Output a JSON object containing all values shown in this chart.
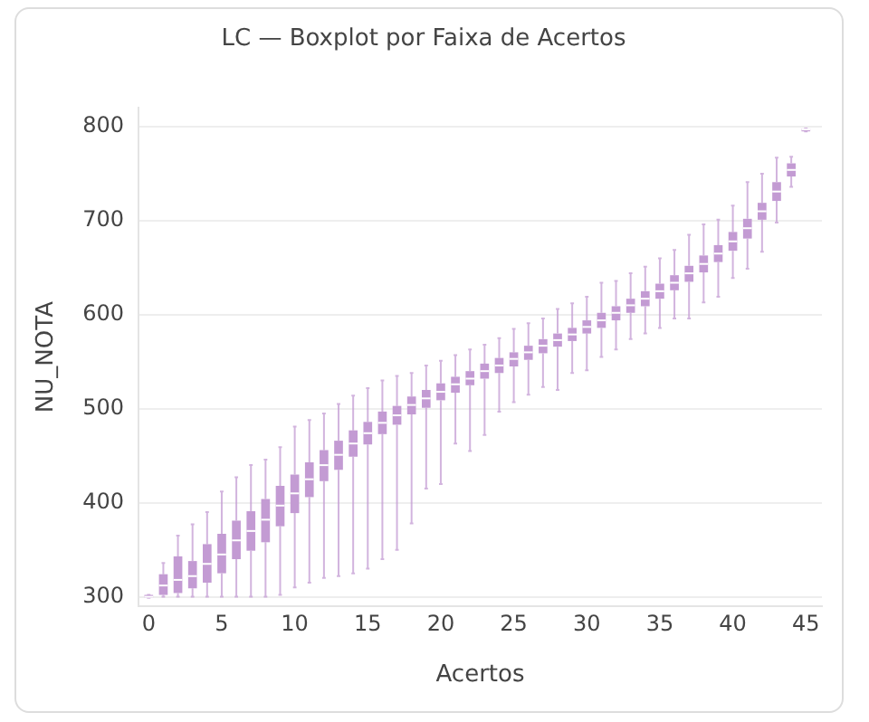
{
  "chart_data": {
    "type": "box",
    "title": "LC — Boxplot por Faixa de Acertos",
    "xlabel": "Acertos",
    "ylabel": "NU_NOTA",
    "color": "#c39bd3",
    "x": [
      0,
      1,
      2,
      3,
      4,
      5,
      6,
      7,
      8,
      9,
      10,
      11,
      12,
      13,
      14,
      15,
      16,
      17,
      18,
      19,
      20,
      21,
      22,
      23,
      24,
      25,
      26,
      27,
      28,
      29,
      30,
      31,
      32,
      33,
      34,
      35,
      36,
      37,
      38,
      39,
      40,
      41,
      42,
      43,
      44,
      45
    ],
    "xlim": [
      -0.7,
      46.1
    ],
    "xticks": [
      0,
      5,
      10,
      15,
      20,
      25,
      30,
      35,
      40,
      45
    ],
    "ylim": [
      290,
      820
    ],
    "yticks": [
      300,
      400,
      500,
      600,
      700,
      800
    ],
    "grid": "y",
    "legend": false,
    "boxes": [
      {
        "low": 299,
        "q1": 299,
        "median": 300,
        "q3": 302,
        "high": 302
      },
      {
        "low": 300,
        "q1": 302,
        "median": 312,
        "q3": 324,
        "high": 336
      },
      {
        "low": 300,
        "q1": 304,
        "median": 318,
        "q3": 343,
        "high": 365
      },
      {
        "low": 300,
        "q1": 309,
        "median": 322,
        "q3": 338,
        "high": 377
      },
      {
        "low": 300,
        "q1": 315,
        "median": 335,
        "q3": 356,
        "high": 390
      },
      {
        "low": 300,
        "q1": 325,
        "median": 345,
        "q3": 367,
        "high": 412
      },
      {
        "low": 300,
        "q1": 340,
        "median": 360,
        "q3": 381,
        "high": 427
      },
      {
        "low": 300,
        "q1": 349,
        "median": 370,
        "q3": 391,
        "high": 440
      },
      {
        "low": 300,
        "q1": 358,
        "median": 382,
        "q3": 404,
        "high": 446
      },
      {
        "low": 302,
        "q1": 375,
        "median": 397,
        "q3": 418,
        "high": 459
      },
      {
        "low": 310,
        "q1": 389,
        "median": 410,
        "q3": 430,
        "high": 481
      },
      {
        "low": 315,
        "q1": 406,
        "median": 425,
        "q3": 443,
        "high": 488
      },
      {
        "low": 320,
        "q1": 423,
        "median": 440,
        "q3": 456,
        "high": 495
      },
      {
        "low": 322,
        "q1": 435,
        "median": 451,
        "q3": 466,
        "high": 505
      },
      {
        "low": 325,
        "q1": 449,
        "median": 463,
        "q3": 477,
        "high": 514
      },
      {
        "low": 330,
        "q1": 462,
        "median": 474,
        "q3": 486,
        "high": 522
      },
      {
        "low": 340,
        "q1": 473,
        "median": 485,
        "q3": 497,
        "high": 530
      },
      {
        "low": 350,
        "q1": 483,
        "median": 493,
        "q3": 503,
        "high": 535
      },
      {
        "low": 378,
        "q1": 494,
        "median": 504,
        "q3": 513,
        "high": 538
      },
      {
        "low": 415,
        "q1": 501,
        "median": 511,
        "q3": 520,
        "high": 546
      },
      {
        "low": 420,
        "q1": 509,
        "median": 518,
        "q3": 527,
        "high": 551
      },
      {
        "low": 463,
        "q1": 517,
        "median": 526,
        "q3": 534,
        "high": 557
      },
      {
        "low": 455,
        "q1": 525,
        "median": 532,
        "q3": 540,
        "high": 563
      },
      {
        "low": 472,
        "q1": 532,
        "median": 540,
        "q3": 548,
        "high": 568
      },
      {
        "low": 497,
        "q1": 538,
        "median": 546,
        "q3": 554,
        "high": 575
      },
      {
        "low": 507,
        "q1": 545,
        "median": 553,
        "q3": 560,
        "high": 585
      },
      {
        "low": 515,
        "q1": 552,
        "median": 560,
        "q3": 567,
        "high": 591
      },
      {
        "low": 523,
        "q1": 559,
        "median": 567,
        "q3": 574,
        "high": 596
      },
      {
        "low": 520,
        "q1": 566,
        "median": 573,
        "q3": 580,
        "high": 606
      },
      {
        "low": 538,
        "q1": 572,
        "median": 579,
        "q3": 586,
        "high": 612
      },
      {
        "low": 541,
        "q1": 580,
        "median": 587,
        "q3": 594,
        "high": 619
      },
      {
        "low": 555,
        "q1": 586,
        "median": 594,
        "q3": 602,
        "high": 634
      },
      {
        "low": 563,
        "q1": 594,
        "median": 602,
        "q3": 609,
        "high": 636
      },
      {
        "low": 574,
        "q1": 602,
        "median": 610,
        "q3": 617,
        "high": 644
      },
      {
        "low": 580,
        "q1": 609,
        "median": 617,
        "q3": 625,
        "high": 651
      },
      {
        "low": 586,
        "q1": 617,
        "median": 625,
        "q3": 633,
        "high": 660
      },
      {
        "low": 596,
        "q1": 626,
        "median": 634,
        "q3": 642,
        "high": 669
      },
      {
        "low": 596,
        "q1": 635,
        "median": 644,
        "q3": 652,
        "high": 685
      },
      {
        "low": 613,
        "q1": 645,
        "median": 654,
        "q3": 663,
        "high": 696
      },
      {
        "low": 619,
        "q1": 656,
        "median": 665,
        "q3": 674,
        "high": 701
      },
      {
        "low": 639,
        "q1": 668,
        "median": 678,
        "q3": 688,
        "high": 716
      },
      {
        "low": 649,
        "q1": 681,
        "median": 692,
        "q3": 702,
        "high": 741
      },
      {
        "low": 667,
        "q1": 701,
        "median": 710,
        "q3": 719,
        "high": 750
      },
      {
        "low": 698,
        "q1": 721,
        "median": 731,
        "q3": 741,
        "high": 767
      },
      {
        "low": 736,
        "q1": 747,
        "median": 754,
        "q3": 761,
        "high": 768
      },
      {
        "low": 795,
        "q1": 795,
        "median": 797,
        "q3": 798,
        "high": 798
      }
    ]
  }
}
